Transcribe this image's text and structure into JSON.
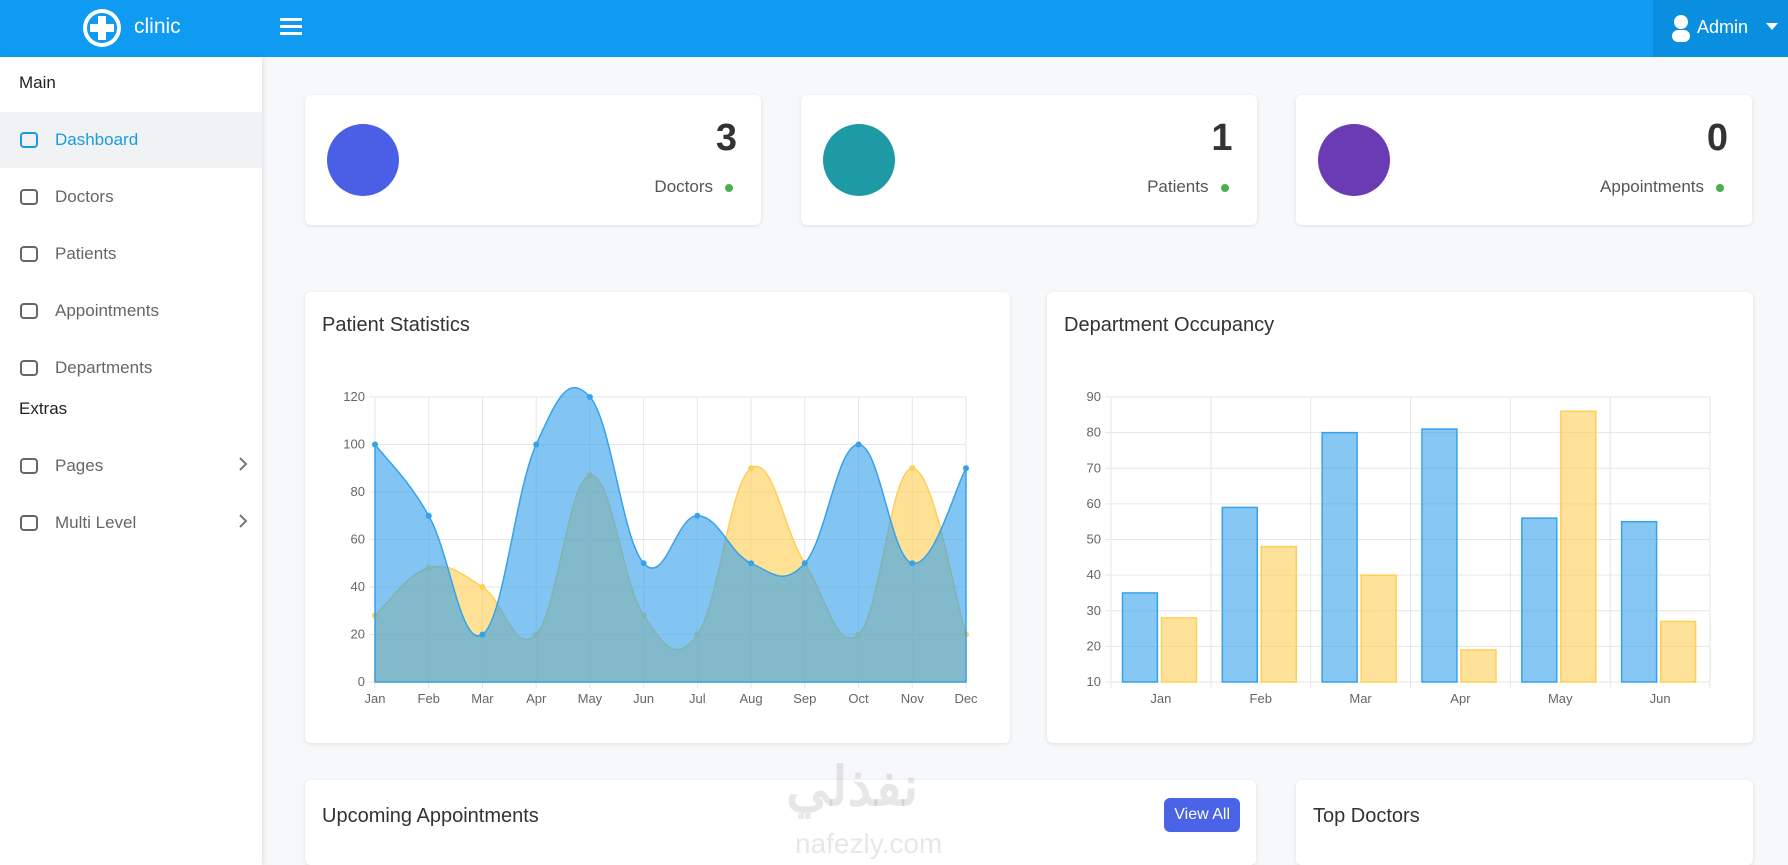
{
  "header": {
    "brand": "clinic",
    "user": "Admin"
  },
  "sidebar": {
    "sections": [
      {
        "title": "Main",
        "items": [
          "Dashboard",
          "Doctors",
          "Patients",
          "Appointments",
          "Departments"
        ]
      },
      {
        "title": "Extras",
        "items": [
          "Pages",
          "Multi Level"
        ]
      }
    ]
  },
  "stats": [
    {
      "value": 3,
      "label": "Doctors"
    },
    {
      "value": 1,
      "label": "Patients"
    },
    {
      "value": 0,
      "label": "Appointments"
    }
  ],
  "chart_data": [
    {
      "type": "area",
      "title": "Patient Statistics",
      "categories": [
        "Jan",
        "Feb",
        "Mar",
        "Apr",
        "May",
        "Jun",
        "Jul",
        "Aug",
        "Sep",
        "Oct",
        "Nov",
        "Dec"
      ],
      "ylim": [
        0,
        120
      ],
      "yticks": [
        0,
        20,
        40,
        60,
        80,
        100,
        120
      ],
      "grid": true,
      "series": [
        {
          "color": "#ffce56",
          "values": [
            28,
            48,
            40,
            20,
            87,
            28,
            20,
            90,
            50,
            20,
            90,
            20
          ]
        },
        {
          "color": "#36a2eb",
          "values": [
            100,
            70,
            20,
            100,
            120,
            50,
            70,
            50,
            50,
            100,
            50,
            90
          ]
        }
      ]
    },
    {
      "type": "bar",
      "title": "Department Occupancy",
      "categories": [
        "Jan",
        "Feb",
        "Mar",
        "Apr",
        "May",
        "Jun"
      ],
      "ylim": [
        10,
        90
      ],
      "yticks": [
        10,
        20,
        30,
        40,
        50,
        60,
        70,
        80,
        90
      ],
      "grid": true,
      "series": [
        {
          "color": "#36a2eb",
          "values": [
            35,
            59,
            80,
            81,
            56,
            55
          ]
        },
        {
          "color": "#ffce56",
          "values": [
            28,
            48,
            40,
            19,
            86,
            27
          ]
        }
      ]
    }
  ],
  "panels": [
    {
      "title": "Upcoming Appointments",
      "button": "View All"
    },
    {
      "title": "Top Doctors"
    }
  ],
  "watermark": {
    "arabic": "نفذلي",
    "latin": "nafezly.com"
  }
}
